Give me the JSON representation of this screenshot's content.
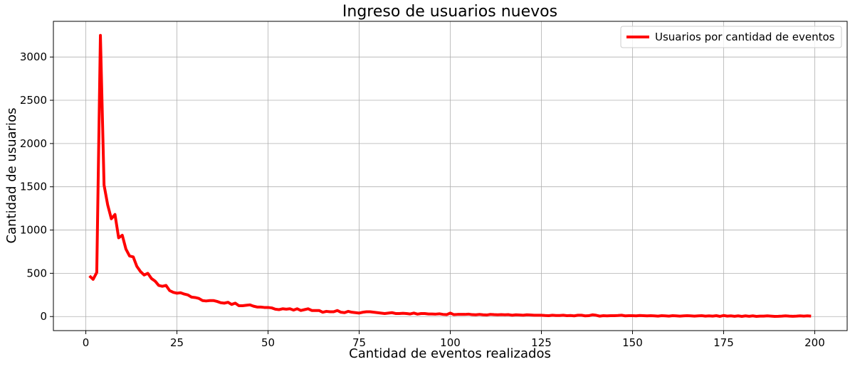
{
  "chart_data": {
    "type": "line",
    "title": "Ingreso de usuarios nuevos",
    "xlabel": "Cantidad de eventos realizados",
    "ylabel": "Cantidad de usuarios",
    "x": [
      1,
      2,
      3,
      4,
      5,
      6,
      7,
      8,
      9,
      10,
      11,
      12,
      13,
      14,
      15,
      16,
      17,
      18,
      19,
      20,
      21,
      22,
      23,
      24,
      25,
      26,
      27,
      28,
      29,
      30,
      31,
      32,
      33,
      34,
      35,
      36,
      37,
      38,
      39,
      40,
      41,
      42,
      43,
      44,
      45,
      46,
      47,
      48,
      49,
      50,
      51,
      52,
      53,
      54,
      55,
      56,
      57,
      58,
      59,
      60,
      61,
      62,
      63,
      64,
      65,
      66,
      67,
      68,
      69,
      70,
      71,
      72,
      73,
      74,
      75,
      76,
      77,
      78,
      79,
      80,
      81,
      82,
      83,
      84,
      85,
      86,
      87,
      88,
      89,
      90,
      91,
      92,
      93,
      94,
      95,
      96,
      97,
      98,
      99,
      100,
      101,
      102,
      103,
      104,
      105,
      106,
      107,
      108,
      109,
      110,
      111,
      112,
      113,
      114,
      115,
      116,
      117,
      118,
      119,
      120,
      121,
      122,
      123,
      124,
      125,
      126,
      127,
      128,
      129,
      130,
      131,
      132,
      133,
      134,
      135,
      136,
      137,
      138,
      139,
      140,
      141,
      142,
      143,
      144,
      145,
      146,
      147,
      148,
      149,
      150,
      151,
      152,
      153,
      154,
      155,
      156,
      157,
      158,
      159,
      160,
      161,
      162,
      163,
      164,
      165,
      166,
      167,
      168,
      169,
      170,
      171,
      172,
      173,
      174,
      175,
      176,
      177,
      178,
      179,
      180,
      181,
      182,
      183,
      184,
      185,
      186,
      187,
      188,
      189,
      190,
      191,
      192,
      193,
      194,
      195,
      196,
      197,
      198,
      199
    ],
    "series": [
      {
        "name": "Usuarios por cantidad de eventos",
        "color": "#ff0000",
        "values": [
          470,
          430,
          510,
          3250,
          1520,
          1290,
          1130,
          1180,
          910,
          940,
          780,
          700,
          690,
          580,
          520,
          480,
          500,
          440,
          410,
          360,
          350,
          360,
          300,
          280,
          270,
          275,
          260,
          250,
          225,
          220,
          210,
          185,
          180,
          185,
          185,
          175,
          160,
          155,
          165,
          140,
          155,
          125,
          125,
          130,
          135,
          120,
          110,
          110,
          105,
          105,
          100,
          85,
          80,
          90,
          85,
          90,
          75,
          90,
          70,
          80,
          90,
          70,
          70,
          70,
          50,
          60,
          55,
          55,
          70,
          50,
          45,
          60,
          50,
          45,
          40,
          50,
          55,
          55,
          50,
          45,
          40,
          35,
          40,
          45,
          35,
          35,
          38,
          35,
          30,
          40,
          28,
          35,
          35,
          30,
          30,
          28,
          32,
          25,
          22,
          40,
          22,
          25,
          25,
          25,
          28,
          22,
          20,
          25,
          20,
          18,
          25,
          22,
          20,
          22,
          20,
          22,
          15,
          20,
          18,
          15,
          20,
          18,
          15,
          15,
          15,
          12,
          10,
          15,
          12,
          12,
          15,
          10,
          12,
          8,
          15,
          15,
          8,
          10,
          20,
          15,
          5,
          10,
          8,
          10,
          10,
          12,
          15,
          8,
          10,
          10,
          8,
          12,
          10,
          8,
          10,
          8,
          5,
          10,
          8,
          5,
          10,
          8,
          5,
          8,
          10,
          8,
          5,
          8,
          10,
          5,
          8,
          5,
          10,
          2,
          12,
          5,
          8,
          3,
          8,
          2,
          8,
          3,
          8,
          2,
          5,
          5,
          8,
          5,
          2,
          3,
          5,
          8,
          5,
          3,
          5,
          8,
          5,
          8,
          5
        ]
      }
    ],
    "xlim": [
      -8.9,
      208.9
    ],
    "ylim": [
      -162.5,
      3412.5
    ],
    "xticks": [
      0,
      25,
      50,
      75,
      100,
      125,
      150,
      175,
      200
    ],
    "yticks": [
      0,
      500,
      1000,
      1500,
      2000,
      2500,
      3000
    ],
    "grid": true,
    "legend": "upper right"
  }
}
